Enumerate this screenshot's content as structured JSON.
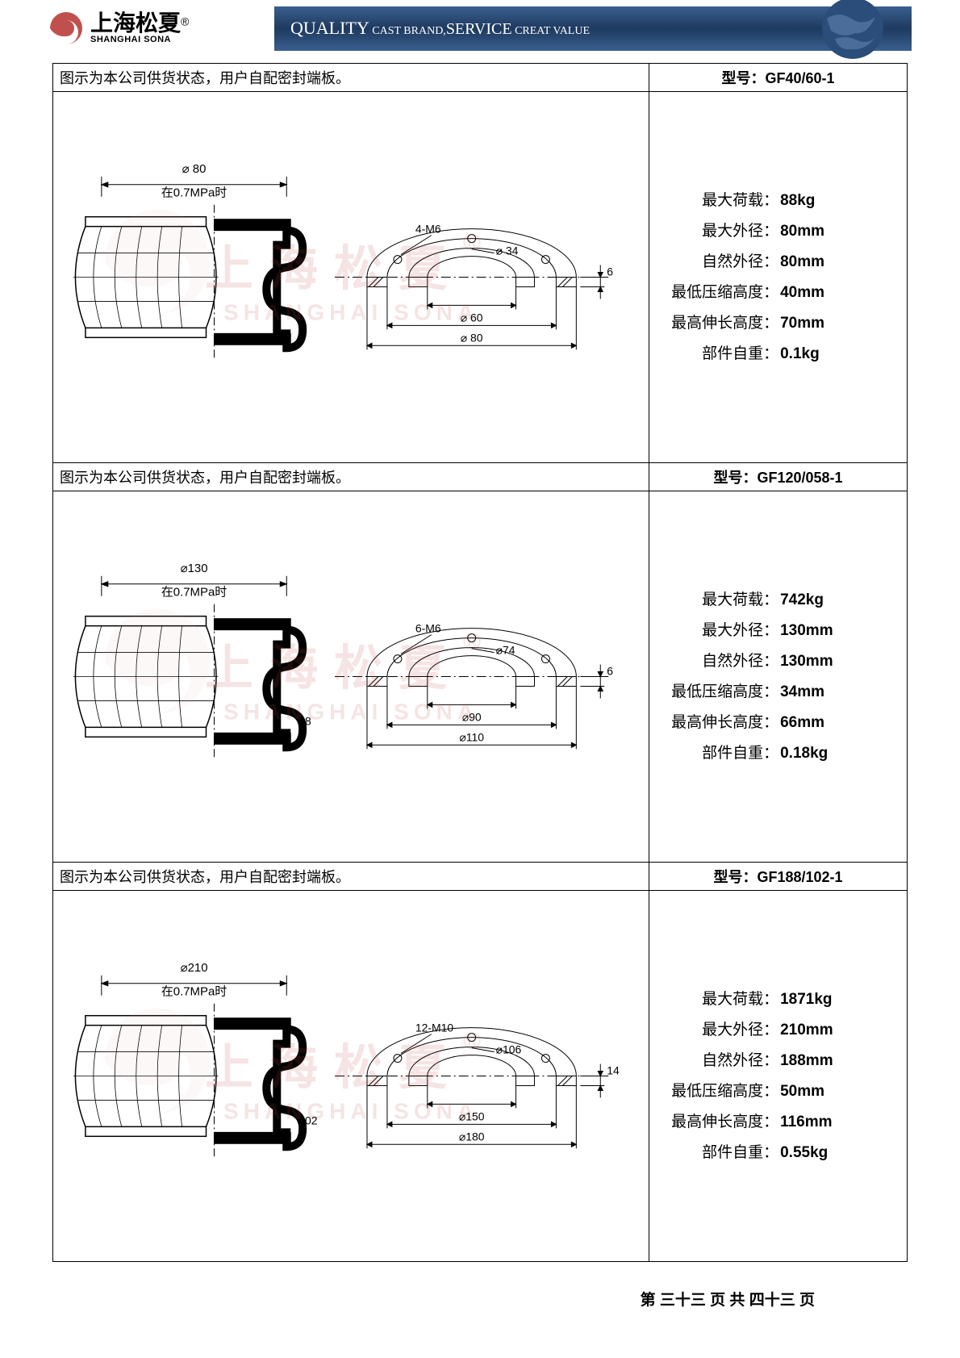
{
  "header": {
    "logo_cn": "上海松夏",
    "logo_en": "SHANGHAI SONA",
    "logo_r": "®",
    "bar_quality": "QUALITY",
    "bar_cast": " CAST BRAND,",
    "bar_service": "SERVICE",
    "bar_creat": " CREAT VALUE"
  },
  "caption_text": "图示为本公司供货状态，用户自配密封端板。",
  "model_label": "型号：",
  "products": [
    {
      "model": "GF40/60-1",
      "specs": {
        "max_load_label": "最大荷载：",
        "max_load": "88kg",
        "max_od_label": "最大外径：",
        "max_od": "80mm",
        "nat_od_label": "自然外径：",
        "nat_od": "80mm",
        "min_h_label": "最低压缩高度：",
        "min_h": "40mm",
        "max_h_label": "最高伸长高度：",
        "max_h": "70mm",
        "weight_label": "部件自重：",
        "weight": "0.1kg"
      },
      "diagram": {
        "top_diameter": "⌀ 80",
        "pressure_note": "在0.7MPa时",
        "bolt": "4-M6",
        "small_d": "⌀ 34",
        "mid_d": "⌀ 60",
        "large_d": "⌀ 80",
        "height": "",
        "thickness": "6"
      }
    },
    {
      "model": "GF120/058-1",
      "specs": {
        "max_load_label": "最大荷载：",
        "max_load": "742kg",
        "max_od_label": "最大外径：",
        "max_od": "130mm",
        "nat_od_label": "自然外径：",
        "nat_od": "130mm",
        "min_h_label": "最低压缩高度：",
        "min_h": "34mm",
        "max_h_label": "最高伸长高度：",
        "max_h": "66mm",
        "weight_label": "部件自重：",
        "weight": "0.18kg"
      },
      "diagram": {
        "top_diameter": "⌀130",
        "pressure_note": "在0.7MPa时",
        "bolt": "6-M6",
        "small_d": "⌀74",
        "mid_d": "⌀90",
        "large_d": "⌀110",
        "height": "58",
        "thickness": "6"
      }
    },
    {
      "model": "GF188/102-1",
      "specs": {
        "max_load_label": "最大荷载：",
        "max_load": "1871kg",
        "max_od_label": "最大外径：",
        "max_od": "210mm",
        "nat_od_label": "自然外径：",
        "nat_od": "188mm",
        "min_h_label": "最低压缩高度：",
        "min_h": "50mm",
        "max_h_label": "最高伸长高度：",
        "max_h": "116mm",
        "weight_label": "部件自重：",
        "weight": "0.55kg"
      },
      "diagram": {
        "top_diameter": "⌀210",
        "pressure_note": "在0.7MPa时",
        "bolt": "12-M10",
        "small_d": "⌀106",
        "mid_d": "⌀150",
        "large_d": "⌀180",
        "height": "102",
        "thickness": "14"
      }
    }
  ],
  "watermark": {
    "cn": "上海松夏",
    "en": "SHANGHAI SONA",
    "r": "®"
  },
  "footer": "第 三十三 页 共 四十三 页",
  "colors": {
    "logo_red": "#c0504d",
    "header_blue": "#1e3a5f",
    "border": "#000000"
  }
}
